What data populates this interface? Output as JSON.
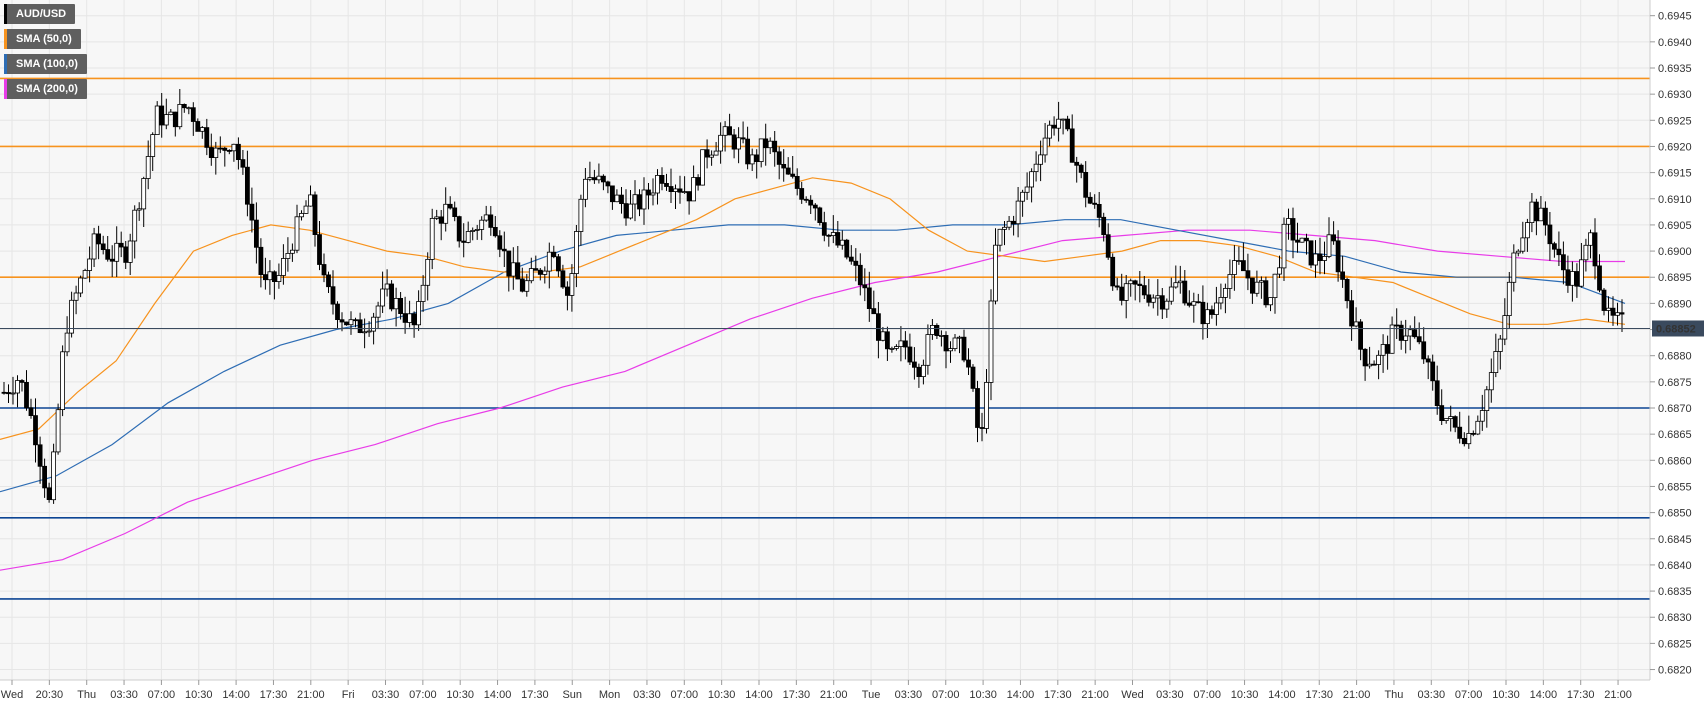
{
  "chart_data": {
    "type": "candlestick",
    "symbol": "AUD/USD",
    "colors": {
      "background": "#f7f7f7",
      "grid": "#e6e6e6",
      "candle_up": "#ffffff",
      "candle_down": "#000000",
      "sma50": "#f7931e",
      "sma100": "#2e6db4",
      "sma200": "#e83ce8",
      "resistance": "#f7931e",
      "support": "#0d4594",
      "price_tag_bg": "#3a4a5e",
      "price_tag_text": "#ffffff"
    },
    "legend": [
      {
        "label": "AUD/USD",
        "color": "#000000"
      },
      {
        "label": "SMA (50,0)",
        "color": "#f7931e"
      },
      {
        "label": "SMA (100,0)",
        "color": "#2e6db4"
      },
      {
        "label": "SMA (200,0)",
        "color": "#e83ce8"
      }
    ],
    "y_axis": {
      "range": [
        0.6818,
        0.6948
      ],
      "ticks": [
        "0.6945",
        "0.6940",
        "0.6935",
        "0.6930",
        "0.6925",
        "0.6920",
        "0.6915",
        "0.6910",
        "0.6905",
        "0.6900",
        "0.6895",
        "0.6890",
        "0.6885",
        "0.6880",
        "0.6875",
        "0.6870",
        "0.6865",
        "0.6860",
        "0.6855",
        "0.6850",
        "0.6845",
        "0.6840",
        "0.6835",
        "0.6830",
        "0.6825",
        "0.6820"
      ]
    },
    "x_axis": {
      "labels": [
        "Wed",
        "20:30",
        "Thu",
        "03:30",
        "07:00",
        "10:30",
        "14:00",
        "17:30",
        "21:00",
        "Fri",
        "03:30",
        "07:00",
        "10:30",
        "14:00",
        "17:30",
        "Sun",
        "Mon",
        "03:30",
        "07:00",
        "10:30",
        "14:00",
        "17:30",
        "21:00",
        "Tue",
        "03:30",
        "07:00",
        "10:30",
        "14:00",
        "17:30",
        "21:00",
        "Wed",
        "03:30",
        "07:00",
        "10:30",
        "14:00",
        "17:30",
        "21:00",
        "Thu",
        "03:30",
        "07:00",
        "10:30",
        "14:00",
        "17:30",
        "21:00"
      ]
    },
    "current_price": "0.68852",
    "current_value": 0.68852,
    "horizontal_levels": [
      {
        "type": "resistance",
        "value": 0.6933
      },
      {
        "type": "resistance",
        "value": 0.692
      },
      {
        "type": "resistance",
        "value": 0.6895
      },
      {
        "type": "support",
        "value": 0.687
      },
      {
        "type": "support",
        "value": 0.6849
      },
      {
        "type": "support",
        "value": 0.68335
      }
    ],
    "price_path": [
      0.6873,
      0.6876,
      0.6866,
      0.6851,
      0.6885,
      0.6894,
      0.6902,
      0.6899,
      0.69,
      0.6912,
      0.6926,
      0.6925,
      0.6928,
      0.6923,
      0.6918,
      0.6922,
      0.691,
      0.6893,
      0.6895,
      0.6903,
      0.691,
      0.6893,
      0.6888,
      0.6885,
      0.6887,
      0.6892,
      0.6889,
      0.6885,
      0.6905,
      0.6908,
      0.6902,
      0.6905,
      0.6907,
      0.6897,
      0.6893,
      0.6896,
      0.6901,
      0.6891,
      0.6915,
      0.6913,
      0.691,
      0.6908,
      0.691,
      0.6915,
      0.6913,
      0.6911,
      0.6919,
      0.6922,
      0.6921,
      0.6917,
      0.6921,
      0.6915,
      0.6912,
      0.691,
      0.6903,
      0.69,
      0.6895,
      0.6887,
      0.6879,
      0.6882,
      0.6878,
      0.6886,
      0.6882,
      0.6881,
      0.6862,
      0.6902,
      0.6906,
      0.6912,
      0.6921,
      0.6926,
      0.6919,
      0.691,
      0.6905,
      0.689,
      0.6893,
      0.6892,
      0.6891,
      0.6894,
      0.6889,
      0.6887,
      0.6895,
      0.6897,
      0.6893,
      0.6891,
      0.6905,
      0.6901,
      0.6898,
      0.6902,
      0.6891,
      0.688,
      0.6879,
      0.6884,
      0.6885,
      0.688,
      0.687,
      0.6866,
      0.6865,
      0.6872,
      0.6882,
      0.69,
      0.6909,
      0.6905,
      0.6897,
      0.6894,
      0.6903,
      0.6887,
      0.6886
    ],
    "sma50": [
      0.6864,
      0.6866,
      0.6873,
      0.6879,
      0.689,
      0.69,
      0.6903,
      0.6905,
      0.6904,
      0.6902,
      0.69,
      0.6899,
      0.6897,
      0.6896,
      0.6896,
      0.6897,
      0.69,
      0.6903,
      0.6906,
      0.691,
      0.6912,
      0.6914,
      0.6913,
      0.691,
      0.6904,
      0.69,
      0.6899,
      0.6898,
      0.6899,
      0.69,
      0.6902,
      0.6902,
      0.6901,
      0.6899,
      0.6896,
      0.6895,
      0.6894,
      0.6891,
      0.6888,
      0.6886,
      0.6886,
      0.6887,
      0.6886
    ],
    "sma100": [
      0.6854,
      0.6857,
      0.6863,
      0.6871,
      0.6877,
      0.6882,
      0.6885,
      0.6887,
      0.689,
      0.6896,
      0.69,
      0.6903,
      0.6904,
      0.6905,
      0.6905,
      0.6904,
      0.6904,
      0.6905,
      0.6905,
      0.6906,
      0.6906,
      0.6904,
      0.6902,
      0.69,
      0.6899,
      0.6896,
      0.6895,
      0.6895,
      0.6894,
      0.689
    ],
    "sma200": [
      0.6839,
      0.6841,
      0.6846,
      0.6852,
      0.6856,
      0.686,
      0.6863,
      0.6867,
      0.687,
      0.6874,
      0.6877,
      0.6882,
      0.6887,
      0.6891,
      0.6894,
      0.6896,
      0.6899,
      0.6902,
      0.6903,
      0.6904,
      0.6904,
      0.6903,
      0.6902,
      0.69,
      0.6899,
      0.6898,
      0.6898
    ]
  }
}
